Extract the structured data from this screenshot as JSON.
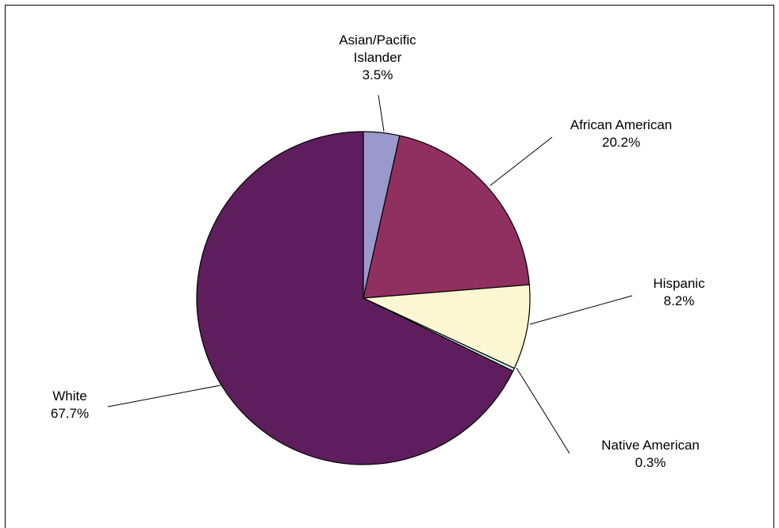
{
  "chart_data": {
    "type": "pie",
    "title": "",
    "slices": [
      {
        "label": "Asian/Pacific Islander",
        "label_lines": [
          "Asian/Pacific",
          "Islander"
        ],
        "value": 3.5,
        "value_label": "3.5%",
        "color": "#9999cc"
      },
      {
        "label": "African American",
        "label_lines": [
          "African American"
        ],
        "value": 20.2,
        "value_label": "20.2%",
        "color": "#903060"
      },
      {
        "label": "Hispanic",
        "label_lines": [
          "Hispanic"
        ],
        "value": 8.2,
        "value_label": "8.2%",
        "color": "#fbf7d2"
      },
      {
        "label": "Native American",
        "label_lines": [
          "Native American"
        ],
        "value": 0.3,
        "value_label": "0.3%",
        "color": "#cce8f0"
      },
      {
        "label": "White",
        "label_lines": [
          "White"
        ],
        "value": 67.7,
        "value_label": "67.7%",
        "color": "#5e1e5e"
      }
    ],
    "start": "12 o'clock",
    "direction": "clockwise",
    "legend": "none",
    "leader_lines": true
  }
}
